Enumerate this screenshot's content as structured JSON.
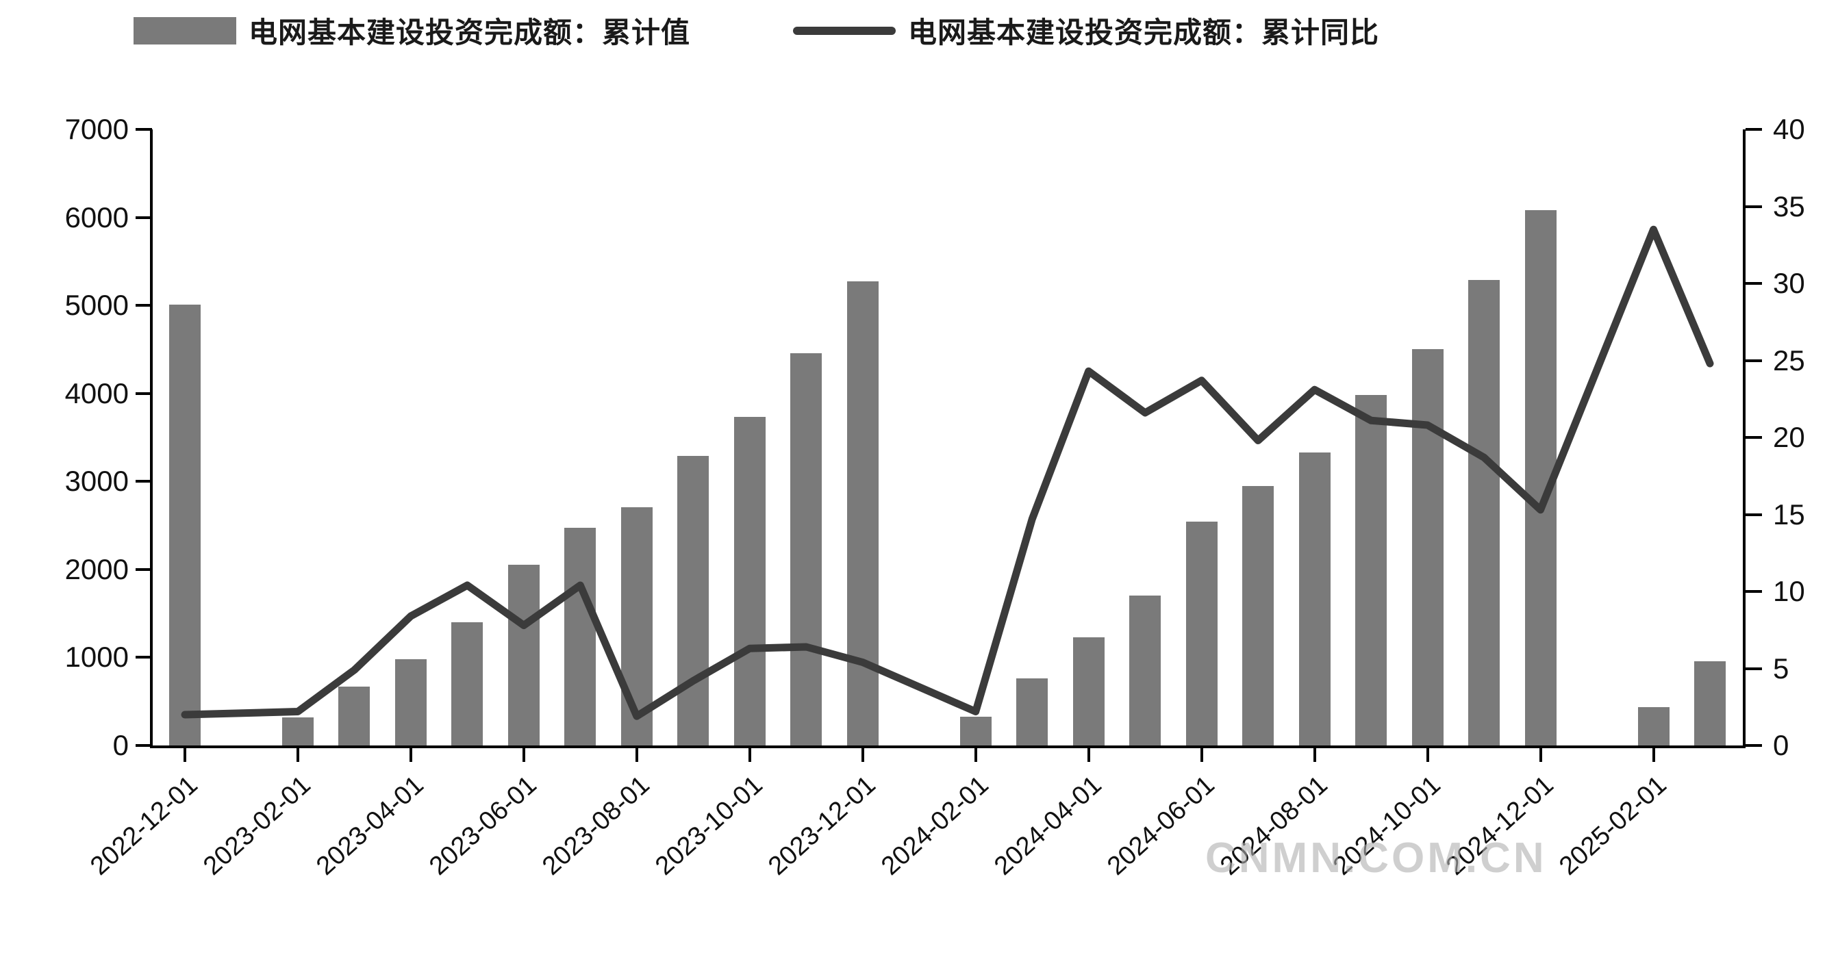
{
  "legend": [
    {
      "type": "bar",
      "label": "电网基本建设投资完成额：累计值"
    },
    {
      "type": "line",
      "label": "电网基本建设投资完成额：累计同比"
    }
  ],
  "watermark": "CNMN.COM.CN",
  "colors": {
    "bar": "#7a7a7a",
    "line": "#3b3b3b",
    "axis": "#000000",
    "tick_text": "#111111",
    "watermark": "#b0b0b0",
    "background": "#ffffff"
  },
  "chart_data": {
    "type": "bar+line",
    "title": "",
    "xlabel": "",
    "ylabel_left": "",
    "ylabel_right": "",
    "grid": false,
    "legend_position": "top",
    "left_axis": {
      "min": 0,
      "max": 7000,
      "step": 1000,
      "tick_labels": [
        "0",
        "1000",
        "2000",
        "3000",
        "4000",
        "5000",
        "6000",
        "7000"
      ]
    },
    "right_axis": {
      "min": 0,
      "max": 40,
      "step": 5,
      "tick_labels": [
        "0",
        "5",
        "10",
        "15",
        "20",
        "25",
        "30",
        "35",
        "40"
      ]
    },
    "categories": [
      "2022-12",
      "2023-01",
      "2023-02",
      "2023-03",
      "2023-04",
      "2023-05",
      "2023-06",
      "2023-07",
      "2023-08",
      "2023-09",
      "2023-10",
      "2023-11",
      "2023-12",
      "2024-01",
      "2024-02",
      "2024-03",
      "2024-04",
      "2024-05",
      "2024-06",
      "2024-07",
      "2024-08",
      "2024-09",
      "2024-10",
      "2024-11",
      "2024-12",
      "2025-01",
      "2025-02",
      "2025-03"
    ],
    "x_tick_labels": [
      "2022-12-01",
      "2023-02-01",
      "2023-04-01",
      "2023-06-01",
      "2023-08-01",
      "2023-10-01",
      "2023-12-01",
      "2024-02-01",
      "2024-04-01",
      "2024-06-01",
      "2024-08-01",
      "2024-10-01",
      "2024-12-01",
      "2025-02-01"
    ],
    "x_tick_slot_step": 2,
    "series": [
      {
        "name": "电网基本建设投资完成额：累计值",
        "type": "bar",
        "axis": "left",
        "values": [
          5012,
          null,
          319,
          668,
          979,
          1400,
          2054,
          2473,
          2705,
          3287,
          3731,
          4458,
          5275,
          null,
          327,
          766,
          1229,
          1703,
          2540,
          2947,
          3330,
          3982,
          4502,
          5290,
          6083,
          null,
          436,
          956
        ]
      },
      {
        "name": "电网基本建设投资完成额：累计同比",
        "type": "line",
        "axis": "right",
        "values": [
          2.0,
          null,
          2.2,
          4.9,
          8.4,
          10.4,
          7.8,
          10.4,
          1.9,
          4.2,
          6.3,
          6.4,
          5.4,
          null,
          2.2,
          14.7,
          24.3,
          21.6,
          23.7,
          19.8,
          23.1,
          21.1,
          20.8,
          18.7,
          15.3,
          null,
          33.5,
          24.8
        ]
      }
    ]
  }
}
